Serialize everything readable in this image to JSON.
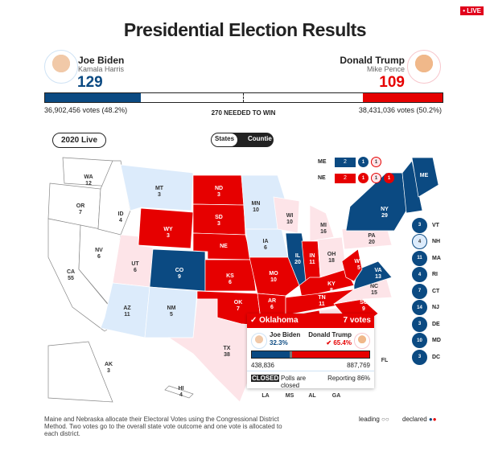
{
  "live_badge": "• LIVE",
  "title": "Presidential Election Results",
  "colors": {
    "dem": "#0b4a82",
    "rep": "#e60000",
    "dem_lead": "#dcebfb",
    "rep_lead": "#fde4e8",
    "undecided": "#ffffff"
  },
  "biden": {
    "name": "Joe Biden",
    "vp": "Kamala Harris",
    "ev": "129",
    "votes": "36,902,456 votes (48.2%)",
    "ev_share": 0.24
  },
  "trump": {
    "name": "Donald Trump",
    "vp": "Mike Pence",
    "ev": "109",
    "votes": "38,431,036 votes (50.2%)",
    "ev_share": 0.2
  },
  "needed": "270 NEEDED TO WIN",
  "year_button": "2020 Live",
  "toggle": {
    "states": "States",
    "counties": "Countie"
  },
  "states": [
    {
      "abbr": "WA",
      "ev": "12",
      "status": "undecided"
    },
    {
      "abbr": "OR",
      "ev": "7",
      "status": "undecided"
    },
    {
      "abbr": "CA",
      "ev": "55",
      "status": "undecided"
    },
    {
      "abbr": "NV",
      "ev": "6",
      "status": "undecided"
    },
    {
      "abbr": "ID",
      "ev": "4",
      "status": "undecided"
    },
    {
      "abbr": "MT",
      "ev": "3",
      "status": "dem_lead"
    },
    {
      "abbr": "WY",
      "ev": "3",
      "status": "rep"
    },
    {
      "abbr": "UT",
      "ev": "6",
      "status": "rep_lead"
    },
    {
      "abbr": "CO",
      "ev": "9",
      "status": "dem"
    },
    {
      "abbr": "AZ",
      "ev": "11",
      "status": "dem_lead"
    },
    {
      "abbr": "NM",
      "ev": "5",
      "status": "dem_lead"
    },
    {
      "abbr": "ND",
      "ev": "3",
      "status": "rep"
    },
    {
      "abbr": "SD",
      "ev": "3",
      "status": "rep"
    },
    {
      "abbr": "NE",
      "ev": "",
      "status": "rep"
    },
    {
      "abbr": "KS",
      "ev": "6",
      "status": "rep"
    },
    {
      "abbr": "OK",
      "ev": "7",
      "status": "rep"
    },
    {
      "abbr": "TX",
      "ev": "38",
      "status": "rep_lead"
    },
    {
      "abbr": "MN",
      "ev": "10",
      "status": "dem_lead"
    },
    {
      "abbr": "IA",
      "ev": "6",
      "status": "dem_lead"
    },
    {
      "abbr": "MO",
      "ev": "10",
      "status": "rep"
    },
    {
      "abbr": "AR",
      "ev": "6",
      "status": "rep"
    },
    {
      "abbr": "LA",
      "ev": "",
      "status": "rep"
    },
    {
      "abbr": "WI",
      "ev": "10",
      "status": "rep_lead"
    },
    {
      "abbr": "IL",
      "ev": "20",
      "status": "dem"
    },
    {
      "abbr": "MI",
      "ev": "16",
      "status": "rep_lead"
    },
    {
      "abbr": "IN",
      "ev": "11",
      "status": "rep"
    },
    {
      "abbr": "OH",
      "ev": "18",
      "status": "rep_lead"
    },
    {
      "abbr": "KY",
      "ev": "8",
      "status": "rep"
    },
    {
      "abbr": "TN",
      "ev": "11",
      "status": "rep"
    },
    {
      "abbr": "MS",
      "ev": "",
      "status": "rep"
    },
    {
      "abbr": "AL",
      "ev": "",
      "status": "rep"
    },
    {
      "abbr": "GA",
      "ev": "",
      "status": "rep_lead"
    },
    {
      "abbr": "FL",
      "ev": "",
      "status": "rep_lead"
    },
    {
      "abbr": "SC",
      "ev": "9",
      "status": "rep"
    },
    {
      "abbr": "NC",
      "ev": "15",
      "status": "rep_lead"
    },
    {
      "abbr": "VA",
      "ev": "13",
      "status": "dem"
    },
    {
      "abbr": "WV",
      "ev": "5",
      "status": "rep"
    },
    {
      "abbr": "PA",
      "ev": "20",
      "status": "rep_lead"
    },
    {
      "abbr": "NY",
      "ev": "29",
      "status": "dem"
    },
    {
      "abbr": "NE-ENG",
      "ev": "",
      "status": "dem"
    },
    {
      "abbr": "ME",
      "ev": "",
      "status": "dem"
    },
    {
      "abbr": "AK",
      "ev": "3",
      "status": "undecided"
    },
    {
      "abbr": "HI",
      "ev": "4",
      "status": "undecided"
    }
  ],
  "me_split": {
    "label": "ME",
    "items": [
      {
        "v": "2",
        "s": "dem"
      },
      {
        "v": "1",
        "s": "dem"
      },
      {
        "v": "1",
        "s": "rep_lead"
      }
    ]
  },
  "ne_split": {
    "label": "NE",
    "items": [
      {
        "v": "2",
        "s": "rep"
      },
      {
        "v": "1",
        "s": "rep"
      },
      {
        "v": "1",
        "s": "rep_lead"
      },
      {
        "v": "1",
        "s": "rep"
      }
    ]
  },
  "small_states": [
    {
      "ev": "3",
      "abbr": "VT",
      "s": "dem"
    },
    {
      "ev": "4",
      "abbr": "NH",
      "s": "dem_lead"
    },
    {
      "ev": "11",
      "abbr": "MA",
      "s": "dem"
    },
    {
      "ev": "4",
      "abbr": "RI",
      "s": "dem"
    },
    {
      "ev": "7",
      "abbr": "CT",
      "s": "dem"
    },
    {
      "ev": "14",
      "abbr": "NJ",
      "s": "dem"
    },
    {
      "ev": "3",
      "abbr": "DE",
      "s": "dem"
    },
    {
      "ev": "10",
      "abbr": "MD",
      "s": "dem"
    },
    {
      "ev": "3",
      "abbr": "DC",
      "s": "dem"
    }
  ],
  "tooltip": {
    "state": "✓ Oklahoma",
    "votes": "7 votes",
    "biden_name": "Joe Biden",
    "biden_pct": "32.3%",
    "trump_name": "Donald Trump",
    "trump_pct": "65.4%",
    "biden_votes": "438,836",
    "trump_votes": "887,769",
    "closed_badge": "CLOSED",
    "polls": "Polls are closed",
    "reporting": "Reporting 86%",
    "biden_share": 0.323,
    "trump_share": 0.654
  },
  "footnote": "Maine and Nebraska allocate their Electoral Votes using the Congressional District Method. Two votes go to the overall state vote outcome and one vote is allocated to each district.",
  "legend": {
    "leading": "leading",
    "declared": "declared"
  }
}
